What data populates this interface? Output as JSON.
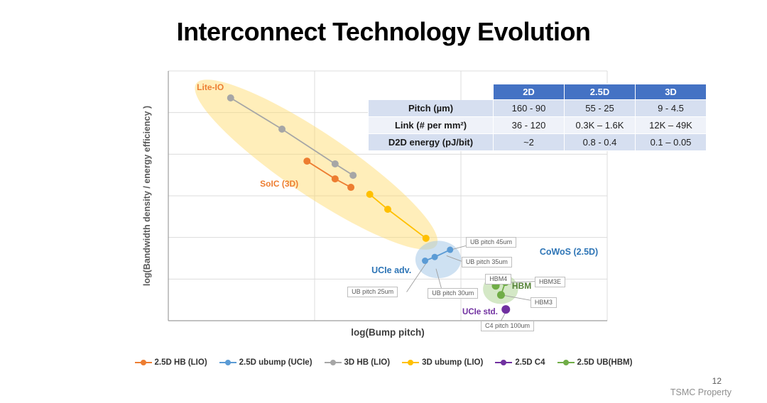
{
  "slide": {
    "title": "Interconnect Technology Evolution",
    "page_number": "12",
    "footer_note": "TSMC Property"
  },
  "table": {
    "header": [
      "",
      "2D",
      "2.5D",
      "3D"
    ],
    "rows": [
      {
        "label": "Pitch (µm)",
        "values": [
          "160 - 90",
          "55 - 25",
          "9 - 4.5"
        ]
      },
      {
        "label": "Link (# per mm²)",
        "values": [
          "36 - 120",
          "0.3K – 1.6K",
          "12K – 49K"
        ]
      },
      {
        "label": "D2D energy (pJ/bit)",
        "values": [
          "~2",
          "0.8 - 0.4",
          "0.1 – 0.05"
        ]
      }
    ],
    "colors": {
      "header_bg": "#4472C4",
      "header_text": "#FFFFFF",
      "band_row_bg": "#D6DFF0",
      "plain_row_bg": "#EFF2F9"
    }
  },
  "chart_data": {
    "type": "scatter",
    "xlabel": "log(Bump pitch)",
    "ylabel": "log(Bandwidth density / energy efficiency )",
    "grid": true,
    "tick_labels": "none (qualitative log-log axes, unlabeled gridlines)",
    "coords": "point coordinates are fractions of the plot area; x: 0=left 1=right, y: 0=top 1=bottom",
    "series": [
      {
        "name": "3D HB (LIO)",
        "color": "#A6A6A6",
        "marker_r": 5,
        "points": [
          [
            0.142,
            0.108
          ],
          [
            0.259,
            0.233
          ],
          [
            0.38,
            0.372
          ],
          [
            0.421,
            0.418
          ]
        ]
      },
      {
        "name": "2.5D HB (LIO)",
        "color": "#ED7D31",
        "marker_r": 5,
        "points": [
          [
            0.316,
            0.361
          ],
          [
            0.38,
            0.432
          ],
          [
            0.416,
            0.466
          ]
        ]
      },
      {
        "name": "3D ubump (LIO)",
        "color": "#FFC000",
        "marker_r": 5,
        "points": [
          [
            0.459,
            0.494
          ],
          [
            0.5,
            0.554
          ],
          [
            0.587,
            0.67
          ]
        ]
      },
      {
        "name": "2.5D ubump (UCIe)",
        "color": "#5B9BD5",
        "marker_r": 4.5,
        "points": [
          [
            0.585,
            0.76
          ],
          [
            0.607,
            0.745
          ],
          [
            0.642,
            0.716
          ]
        ]
      },
      {
        "name": "2.5D UB(HBM)",
        "color": "#70AD47",
        "marker_r": 5.5,
        "points": [
          [
            0.746,
            0.86
          ],
          [
            0.768,
            0.845
          ],
          [
            0.758,
            0.897
          ]
        ]
      },
      {
        "name": "2.5D C4",
        "color": "#7030A0",
        "marker_r": 6,
        "points": [
          [
            0.769,
            0.955
          ]
        ]
      }
    ],
    "highlights": [
      {
        "name": "lio-band",
        "color": "#FFD966",
        "opacity": 0.45,
        "cx": 0.337,
        "cy": 0.375,
        "rx": 0.33,
        "ry": 0.125,
        "rotate_deg": 34
      },
      {
        "name": "ucie-cluster",
        "color": "#9DC3E6",
        "opacity": 0.5,
        "cx": 0.615,
        "cy": 0.755,
        "rx": 0.052,
        "ry": 0.075,
        "rotate_deg": 0
      },
      {
        "name": "hbm-cluster",
        "color": "#A9D18E",
        "opacity": 0.5,
        "cx": 0.757,
        "cy": 0.873,
        "rx": 0.04,
        "ry": 0.06,
        "rotate_deg": 0
      }
    ],
    "labels": [
      {
        "text": "Lite-IO",
        "color": "#ED7D31",
        "x": 0.065,
        "y": 0.048,
        "size": 12,
        "bold": true
      },
      {
        "text": "SoIC (3D)",
        "color": "#ED7D31",
        "x": 0.209,
        "y": 0.435,
        "size": 12,
        "bold": true
      },
      {
        "text": "UCIe adv.",
        "color": "#2E75B6",
        "x": 0.463,
        "y": 0.781,
        "size": 12.5,
        "bold": true
      },
      {
        "text": "CoWoS (2.5D)",
        "color": "#2E75B6",
        "x": 0.846,
        "y": 0.707,
        "size": 12.5,
        "bold": false
      },
      {
        "text": "HBM",
        "color": "#538135",
        "x": 0.783,
        "y": 0.844,
        "size": 12,
        "bold": true
      },
      {
        "text": "UCIe std.",
        "color": "#7030A0",
        "x": 0.67,
        "y": 0.952,
        "size": 11.5,
        "bold": true
      }
    ],
    "callouts": [
      {
        "text": "UB pitch 45um",
        "x": 0.678,
        "y": 0.665,
        "leader": [
          [
            0.678,
            0.7
          ],
          [
            0.648,
            0.714
          ]
        ]
      },
      {
        "text": "UB pitch 35um",
        "x": 0.668,
        "y": 0.744,
        "leader": [
          [
            0.668,
            0.762
          ],
          [
            0.634,
            0.74
          ]
        ]
      },
      {
        "text": "UB pitch 30um",
        "x": 0.591,
        "y": 0.869,
        "leader": [
          [
            0.622,
            0.869
          ],
          [
            0.61,
            0.792
          ]
        ]
      },
      {
        "text": "UB pitch 25um",
        "x": 0.408,
        "y": 0.863,
        "leader": [
          [
            0.543,
            0.885
          ],
          [
            0.588,
            0.768
          ]
        ]
      },
      {
        "text": "HBM4",
        "x": 0.722,
        "y": 0.813,
        "leader": null
      },
      {
        "text": "HBM3E",
        "x": 0.835,
        "y": 0.824,
        "leader": [
          [
            0.835,
            0.843
          ],
          [
            0.772,
            0.847
          ]
        ]
      },
      {
        "text": "HBM3",
        "x": 0.825,
        "y": 0.906,
        "leader": [
          [
            0.825,
            0.918
          ],
          [
            0.762,
            0.898
          ]
        ]
      },
      {
        "text": "C4 pitch 100um",
        "x": 0.712,
        "y": 1.0,
        "leader": [
          [
            0.758,
            1.0
          ],
          [
            0.77,
            0.962
          ]
        ]
      }
    ]
  },
  "legend": {
    "items": [
      {
        "label": "2.5D HB (LIO)",
        "color": "#ED7D31"
      },
      {
        "label": "2.5D ubump (UCIe)",
        "color": "#5B9BD5"
      },
      {
        "label": "3D HB (LIO)",
        "color": "#A6A6A6"
      },
      {
        "label": "3D ubump (LIO)",
        "color": "#FFC000"
      },
      {
        "label": "2.5D C4",
        "color": "#7030A0"
      },
      {
        "label": "2.5D UB(HBM)",
        "color": "#70AD47"
      }
    ]
  }
}
